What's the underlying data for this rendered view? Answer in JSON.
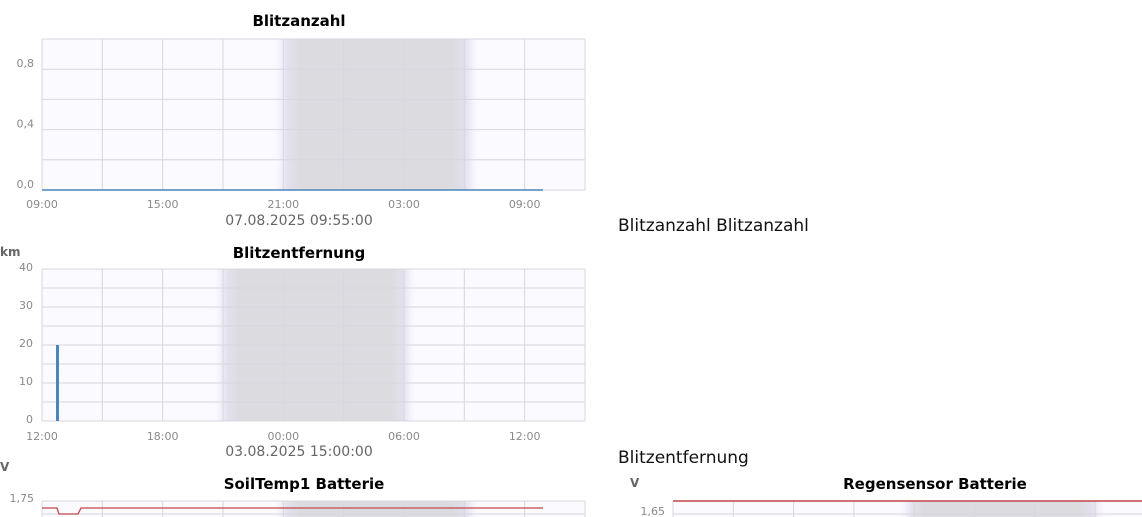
{
  "side_labels": [
    "Blitzanzahl Blitzanzahl",
    "Blitzentfernung"
  ],
  "chart_data": [
    {
      "type": "line",
      "title": "Blitzanzahl",
      "title_color": "#4a86b8",
      "series_color": "#4a86b8",
      "unit": "",
      "ylim": [
        0,
        1.0
      ],
      "y_ticks": [
        "0,0",
        "0,4",
        "0,8"
      ],
      "y_tick_values": [
        0,
        0.4,
        0.8
      ],
      "x_ticks": [
        "09:00",
        "15:00",
        "21:00",
        "03:00",
        "09:00"
      ],
      "timestamp": "07.08.2025 09:55:00",
      "grid": true,
      "night_shading": true,
      "series": [
        {
          "x": [
            "09:00",
            "09:00 (+1d)"
          ],
          "values": [
            0,
            0
          ]
        }
      ]
    },
    {
      "type": "bar",
      "title": "Blitzentfernung",
      "title_color": "#4a86b8",
      "series_color": "#4a86b8",
      "unit": "km",
      "ylim": [
        0,
        40
      ],
      "y_ticks": [
        "0",
        "10",
        "20",
        "30",
        "40"
      ],
      "y_tick_values": [
        0,
        10,
        20,
        30,
        40
      ],
      "x_ticks": [
        "12:00",
        "18:00",
        "00:00",
        "06:00",
        "12:00"
      ],
      "timestamp": "03.08.2025 15:00:00",
      "grid": true,
      "night_shading": true,
      "series": [
        {
          "x": [
            "12:45"
          ],
          "values": [
            20
          ]
        }
      ]
    },
    {
      "type": "line",
      "title": "SoilTemp1 Batterie",
      "title_color": "#b94a4a",
      "series_color": "#c0474a",
      "unit": "V",
      "y_ticks": [
        "1,75"
      ],
      "grid": true,
      "night_shading": true
    },
    {
      "type": "line",
      "title": "Regensensor Batterie",
      "title_color": "#b94a4a",
      "series_color": "#c0474a",
      "unit": "V",
      "y_ticks": [
        "1,65"
      ],
      "grid": true,
      "night_shading": true
    }
  ]
}
